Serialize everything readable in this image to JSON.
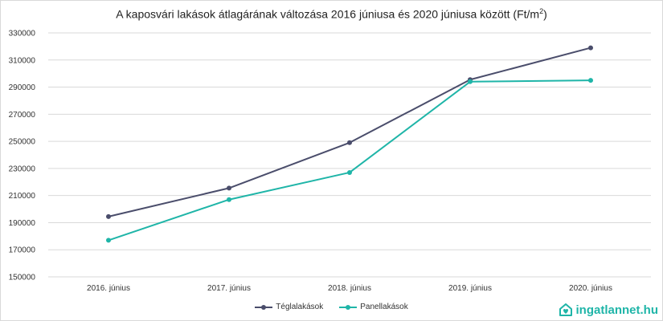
{
  "chart_data": {
    "type": "line",
    "title": "A kaposvári lakások átlagárának változása 2016 júniusa és 2020 júniusa között (Ft/m",
    "title_sup": "2",
    "title_suffix": ")",
    "xlabel": "",
    "ylabel": "",
    "categories": [
      "2016. június",
      "2017. június",
      "2018. június",
      "2019. június",
      "2020. június"
    ],
    "y_ticks": [
      "150000",
      "170000",
      "190000",
      "210000",
      "230000",
      "250000",
      "270000",
      "290000",
      "310000",
      "330000"
    ],
    "ylim": [
      150000,
      330000
    ],
    "grid": true,
    "legend_position": "bottom",
    "series": [
      {
        "name": "Téglalakások",
        "color": "#4a4d6b",
        "values": [
          194500,
          215500,
          249000,
          295500,
          319000
        ]
      },
      {
        "name": "Panellakások",
        "color": "#1fb5a8",
        "values": [
          177000,
          207000,
          227000,
          294000,
          295000
        ]
      }
    ]
  },
  "branding": {
    "logo_text": "ingatlannet.hu",
    "logo_icon": "house-heart-icon",
    "color": "#1fb5a8"
  }
}
